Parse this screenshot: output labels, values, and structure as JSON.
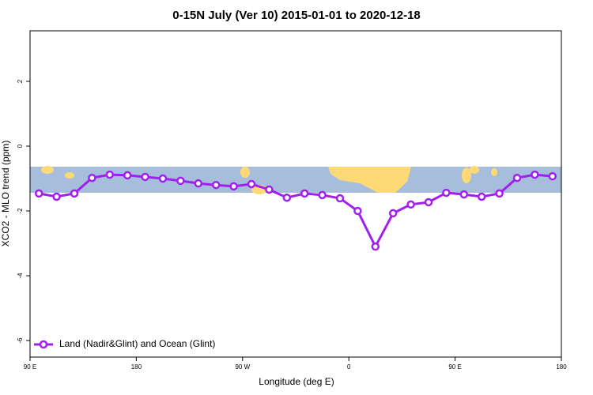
{
  "chart_data": {
    "type": "line",
    "title": "0-15N July (Ver 10)   2015-01-01 to 2020-12-18",
    "xlabel": "Longitude (deg E)",
    "ylabel": "XCO2 - MLO trend (ppm)",
    "x": [
      97.5,
      112.5,
      127.5,
      142.5,
      157.5,
      172.5,
      187.5,
      202.5,
      217.5,
      232.5,
      247.5,
      262.5,
      277.5,
      292.5,
      307.5,
      322.5,
      337.5,
      352.5,
      367.5,
      382.5,
      397.5,
      412.5,
      427.5,
      442.5,
      457.5,
      472.5,
      487.5,
      502.5,
      517.5,
      532.5
    ],
    "series": [
      {
        "name": "Land (Nadir&Glint) and Ocean (Glint)",
        "color": "#a020f0",
        "values": [
          -1.46,
          -1.56,
          -1.46,
          -0.98,
          -0.88,
          -0.9,
          -0.95,
          -1.0,
          -1.07,
          -1.15,
          -1.2,
          -1.24,
          -1.17,
          -1.34,
          -1.59,
          -1.46,
          -1.51,
          -1.61,
          -2.0,
          -3.1,
          -2.07,
          -1.8,
          -1.73,
          -1.44,
          -1.49,
          -1.56,
          -1.46,
          -0.98,
          -0.88,
          -0.93
        ]
      }
    ],
    "xlim": [
      90,
      540
    ],
    "xticks": [
      {
        "value": 90,
        "label": "90 E"
      },
      180,
      {
        "value": 270,
        "label": "90 W"
      },
      {
        "value": 360,
        "label": "0"
      },
      {
        "value": 450,
        "label": "90 E"
      },
      {
        "value": 540,
        "label": "180"
      }
    ],
    "ylim": [
      -6.51,
      3.56
    ],
    "yticks": [
      2,
      0,
      -2,
      -4,
      -6
    ],
    "legend": "bottom-left"
  }
}
